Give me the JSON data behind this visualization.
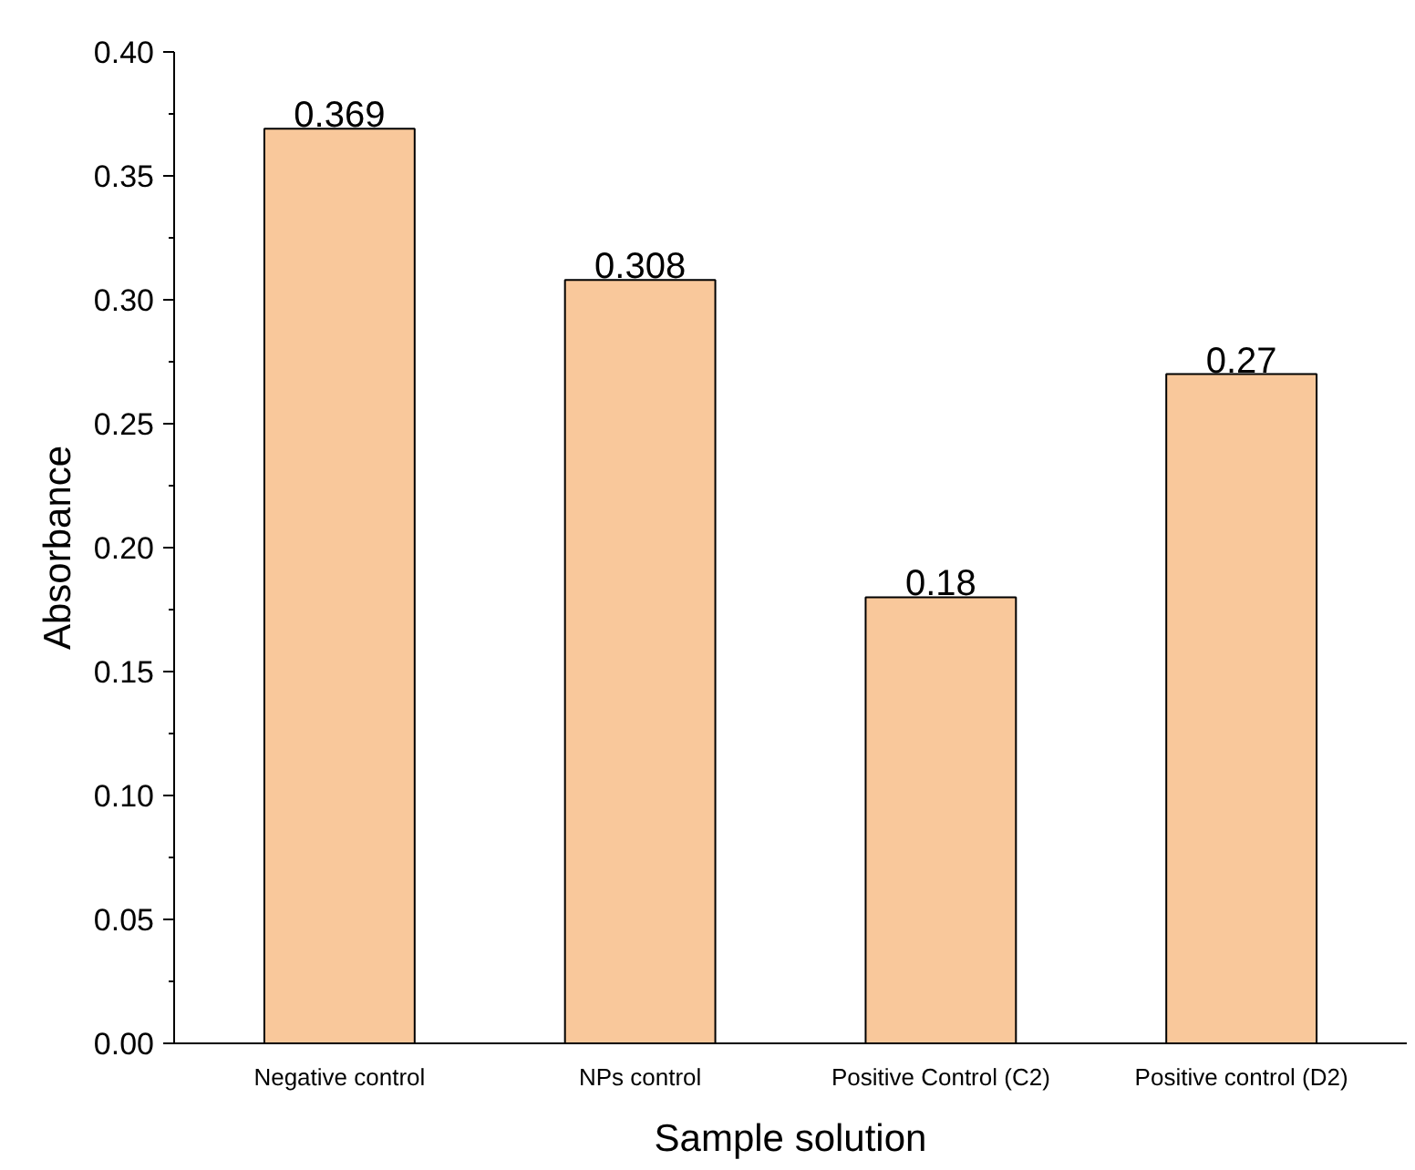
{
  "chart_data": {
    "type": "bar",
    "xlabel": "Sample solution",
    "ylabel": "Absorbance",
    "categories": [
      "Negative control",
      "NPs control",
      "Positive Control (C2)",
      "Positive control (D2)"
    ],
    "values": [
      0.369,
      0.308,
      0.18,
      0.27
    ],
    "color": "#f9c89b",
    "data_labels": true,
    "grid": false,
    "ylim": [
      0,
      0.4
    ],
    "yticks": [
      {
        "value": 0,
        "label": "0.00"
      },
      {
        "value": 0.05,
        "label": "0.05"
      },
      {
        "value": 0.1,
        "label": "0.10"
      },
      {
        "value": 0.15,
        "label": "0.15"
      },
      {
        "value": 0.2,
        "label": "0.20"
      },
      {
        "value": 0.25,
        "label": "0.25"
      },
      {
        "value": 0.3,
        "label": "0.30"
      },
      {
        "value": 0.35,
        "label": "0.35"
      },
      {
        "value": 0.4,
        "label": "0.40"
      }
    ]
  }
}
